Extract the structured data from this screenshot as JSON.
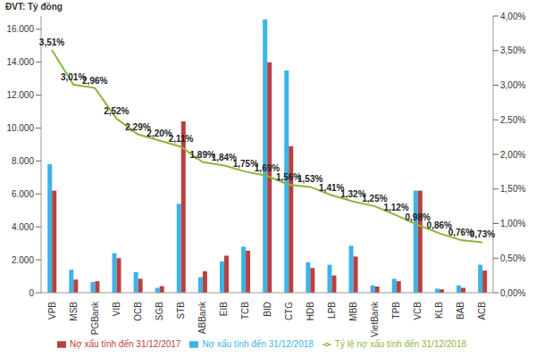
{
  "chart_data": {
    "type": "bar",
    "y_label": "ĐVT: Tỷ đồng",
    "categories": [
      "VPB",
      "MSB",
      "PGBank",
      "VIB",
      "OCB",
      "SGB",
      "STB",
      "ABBank",
      "EIB",
      "TCB",
      "BID",
      "CTG",
      "HDB",
      "LPB",
      "MBB",
      "VietBank",
      "TPB",
      "VCB",
      "KLB",
      "BAB",
      "ACB"
    ],
    "series": [
      {
        "name": "Nợ xấu tính đến 31/12/2018",
        "type": "bar",
        "color": "#3bb4e8",
        "values": [
          7800,
          1400,
          650,
          2400,
          1250,
          300,
          5400,
          950,
          1900,
          2800,
          16600,
          13500,
          1850,
          1700,
          2850,
          450,
          850,
          6200,
          250,
          450,
          1700
        ]
      },
      {
        "name": "Nợ xấu tính đến 31/12/2017",
        "type": "bar",
        "color": "#b8413f",
        "values": [
          6200,
          800,
          700,
          2100,
          850,
          400,
          10400,
          1300,
          2250,
          2550,
          14000,
          8900,
          1500,
          1050,
          2200,
          380,
          700,
          6200,
          200,
          300,
          1350
        ]
      },
      {
        "name": "Tỷ lệ nợ xấu tính đến 31/12/2018",
        "type": "line",
        "axis": "y2",
        "color": "#8db53c",
        "data_labels": true,
        "values": [
          3.51,
          3.01,
          2.96,
          2.52,
          2.29,
          2.2,
          2.11,
          1.89,
          1.84,
          1.75,
          1.69,
          1.56,
          1.53,
          1.41,
          1.32,
          1.25,
          1.12,
          0.98,
          0.86,
          0.76,
          0.73
        ],
        "value_labels": [
          "3,51%",
          "3,01%",
          "2,96%",
          "2,52%",
          "2,29%",
          "2,20%",
          "2,11%",
          "1,89%",
          "1,84%",
          "1,75%",
          "1,69%",
          "1,56%",
          "1,53%",
          "1,41%",
          "1,32%",
          "1,25%",
          "1,12%",
          "0,98%",
          "0,86%",
          "0,76%",
          "0,73%"
        ]
      }
    ],
    "ylim": [
      0,
      16800
    ],
    "yticks": [
      0,
      {
        "value": 2000,
        "label": "2.000"
      },
      {
        "value": 4000,
        "label": "4.000"
      },
      {
        "value": 6000,
        "label": "6.000"
      },
      {
        "value": 8000,
        "label": "8.000"
      },
      {
        "value": 10000,
        "label": "10.000"
      },
      {
        "value": 12000,
        "label": "12.000"
      },
      {
        "value": 14000,
        "label": "14.000"
      },
      {
        "value": 16000,
        "label": "16.000"
      }
    ],
    "y2lim": [
      0,
      4
    ],
    "y2ticks": [
      {
        "value": 0,
        "label": "0,00%"
      },
      {
        "value": 0.5,
        "label": "0,50%"
      },
      {
        "value": 1,
        "label": "1,00%"
      },
      {
        "value": 1.5,
        "label": "1,50%"
      },
      {
        "value": 2,
        "label": "2,00%"
      },
      {
        "value": 2.5,
        "label": "2,50%"
      },
      {
        "value": 3,
        "label": "3,00%"
      },
      {
        "value": 3.5,
        "label": "3,50%"
      },
      {
        "value": 4,
        "label": "4,00%"
      }
    ],
    "legend": "bottom",
    "grid": false
  }
}
